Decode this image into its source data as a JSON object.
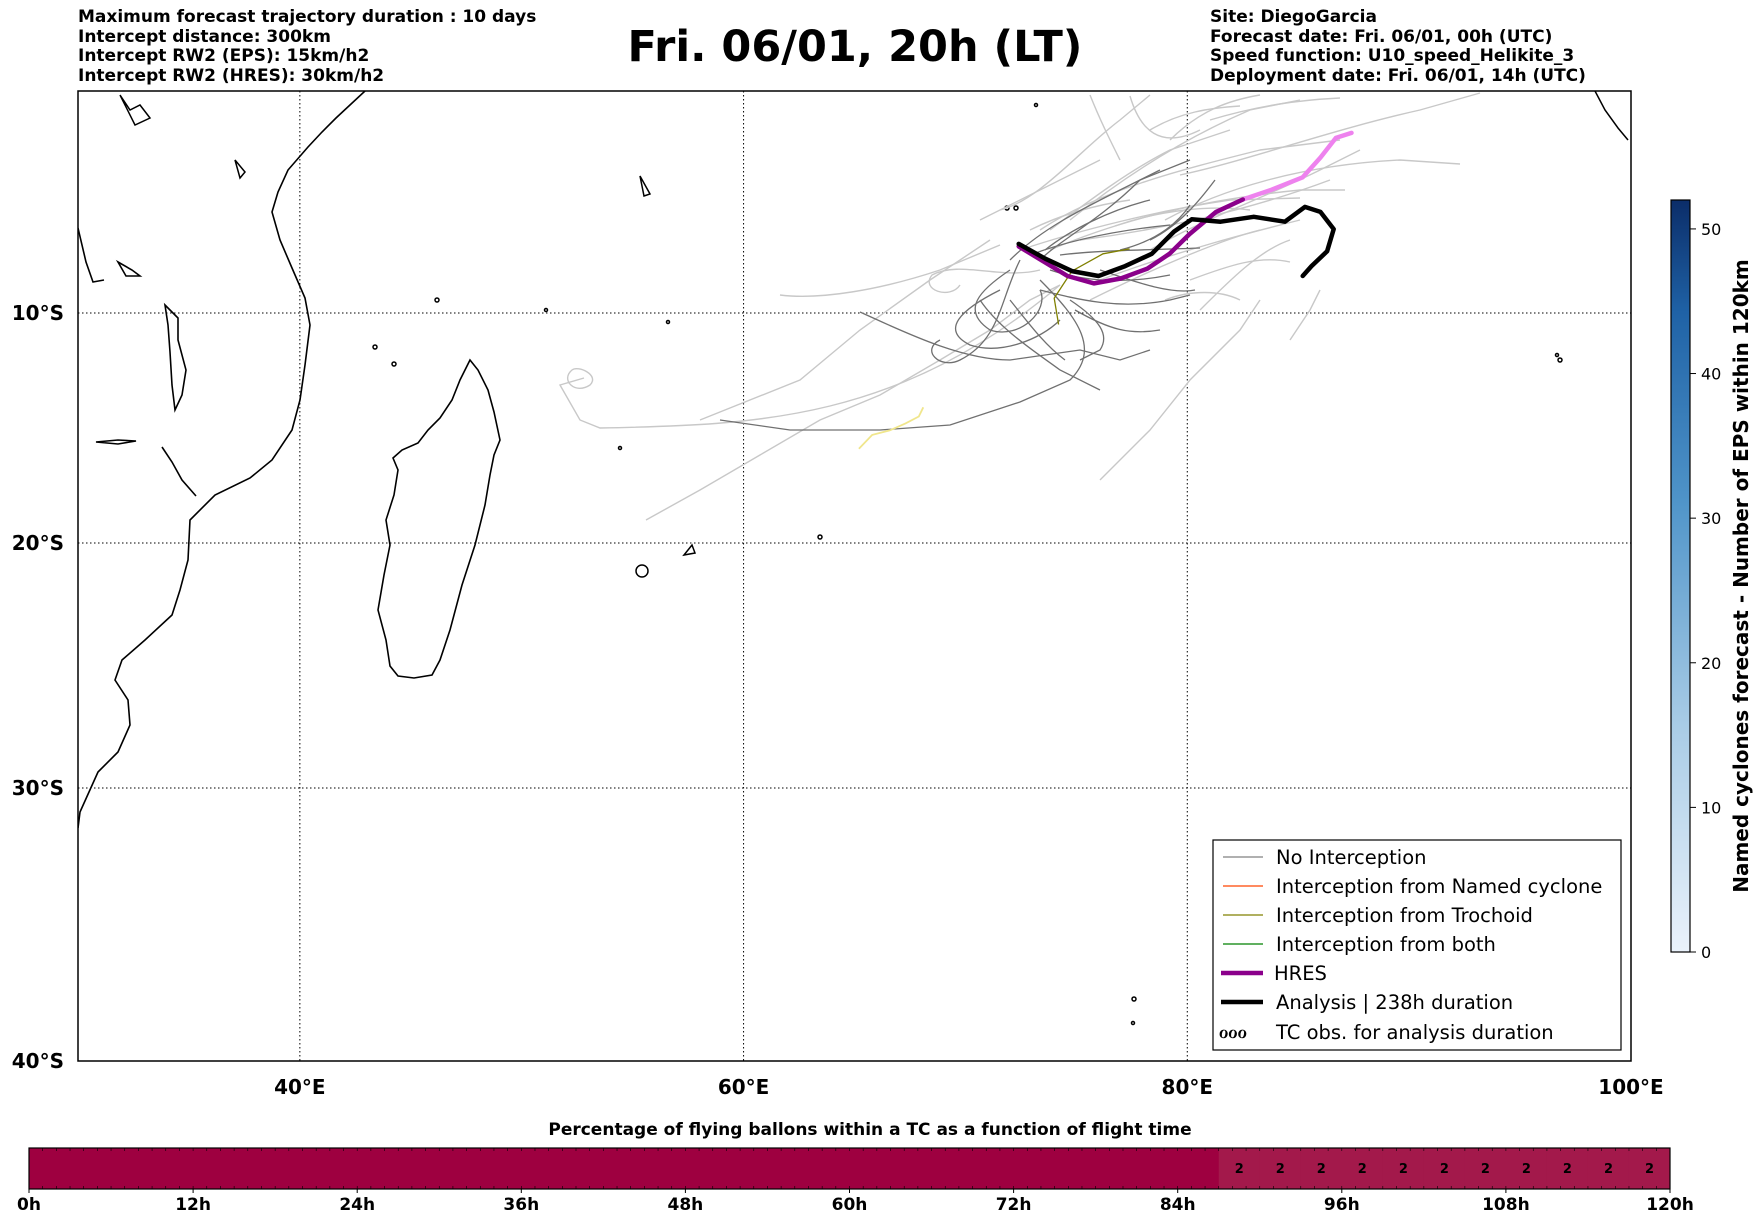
{
  "header_left": [
    "Maximum forecast trajectory duration : 10 days",
    "Intercept distance: 300km",
    "Intercept RW2 (EPS):  15km/h2",
    "Intercept RW2 (HRES): 30km/h2"
  ],
  "header_right": [
    "Site: DiegoGarcia",
    "Forecast date: Fri. 06/01, 00h (UTC)",
    "Speed function: U10_speed_Helikite_3",
    "Deployment date: Fri. 06/01, 14h (UTC)"
  ],
  "title": "Fri. 06/01, 20h (LT)",
  "map": {
    "lon_range": [
      30,
      100
    ],
    "lat_range": [
      -40,
      -1
    ],
    "lon_ticks": [
      {
        "value": 40,
        "label": "40°E"
      },
      {
        "value": 60,
        "label": "60°E"
      },
      {
        "value": 80,
        "label": "80°E"
      },
      {
        "value": 100,
        "label": "100°E"
      }
    ],
    "lat_ticks": [
      {
        "value": -10,
        "label": "10°S"
      },
      {
        "value": -20,
        "label": "20°S"
      },
      {
        "value": -30,
        "label": "30°S"
      },
      {
        "value": -40,
        "label": "40°S"
      }
    ],
    "grid": "dotted",
    "trajectories": {
      "hres": {
        "color": "#8B008B",
        "tail_color": "#EE82EE",
        "lonlat": [
          [
            72.4,
            -7.3
          ],
          [
            73.5,
            -7.9
          ],
          [
            74.6,
            -8.5
          ],
          [
            75.8,
            -8.8
          ],
          [
            77.0,
            -8.6
          ],
          [
            78.2,
            -8.2
          ],
          [
            79.2,
            -7.6
          ],
          [
            80.1,
            -6.8
          ],
          [
            81.3,
            -5.9
          ],
          [
            82.5,
            -5.4
          ],
          [
            83.8,
            -5.0
          ],
          [
            85.2,
            -4.5
          ],
          [
            86.0,
            -3.7
          ],
          [
            86.7,
            -2.9
          ],
          [
            87.4,
            -2.7
          ]
        ]
      },
      "analysis": {
        "color": "#000000",
        "duration_label": "238h duration",
        "lonlat": [
          [
            72.4,
            -7.2
          ],
          [
            73.6,
            -7.8
          ],
          [
            74.8,
            -8.3
          ],
          [
            76.0,
            -8.5
          ],
          [
            77.2,
            -8.1
          ],
          [
            78.4,
            -7.6
          ],
          [
            79.4,
            -6.7
          ],
          [
            80.2,
            -6.2
          ],
          [
            81.5,
            -6.3
          ],
          [
            83.0,
            -6.1
          ],
          [
            84.4,
            -6.3
          ],
          [
            85.3,
            -5.7
          ],
          [
            86.0,
            -5.9
          ],
          [
            86.6,
            -6.6
          ],
          [
            86.3,
            -7.5
          ],
          [
            85.6,
            -8.1
          ],
          [
            85.2,
            -8.5
          ]
        ]
      },
      "trochoid": {
        "color": "#808000",
        "lonlat": [
          [
            74.2,
            -10.5
          ],
          [
            74.0,
            -9.4
          ],
          [
            74.8,
            -8.3
          ],
          [
            76.2,
            -7.6
          ],
          [
            77.4,
            -7.4
          ]
        ]
      },
      "yellow": {
        "color": "#F0E68C",
        "lonlat": [
          [
            65.2,
            -15.9
          ],
          [
            65.8,
            -15.3
          ],
          [
            66.6,
            -15.1
          ],
          [
            67.3,
            -14.8
          ],
          [
            67.9,
            -14.5
          ],
          [
            68.1,
            -14.1
          ]
        ]
      }
    }
  },
  "legend": [
    {
      "label": "No Interception",
      "color": "#808080",
      "style": "thin"
    },
    {
      "label": "Interception from Named cyclone",
      "color": "#FF4500",
      "style": "thin"
    },
    {
      "label": "Interception from Trochoid",
      "color": "#808000",
      "style": "thin"
    },
    {
      "label": "Interception from both",
      "color": "#008000",
      "style": "thin"
    },
    {
      "label": "HRES",
      "color": "#8B008B",
      "style": "thick"
    },
    {
      "label": "Analysis | 238h duration",
      "color": "#000000",
      "style": "thick"
    },
    {
      "label": "TC obs. for analysis duration",
      "color": "#000000",
      "style": "symbol"
    }
  ],
  "colorbar": {
    "label": "Named cyclones forecast - Number of EPS within 120km",
    "min": 0,
    "max": 52,
    "ticks": [
      "0",
      "10",
      "20",
      "30",
      "40",
      "50"
    ],
    "color_low": "#EAF2FB",
    "color_high": "#0B2D69"
  },
  "flight_pct": {
    "title": "Percentage of flying ballons within a TC as a function of flight time",
    "hours_max": 120,
    "ticks": [
      "0h",
      "12h",
      "24h",
      "36h",
      "48h",
      "60h",
      "72h",
      "84h",
      "96h",
      "108h",
      "120h"
    ],
    "labelled_from_hour": 87,
    "labelled_values": [
      "2",
      "2",
      "2",
      "2",
      "2",
      "2",
      "2",
      "2",
      "2",
      "2",
      "2"
    ],
    "color_zero": "#9E0040",
    "color_labelled": "#A3194B"
  },
  "chart_data": {
    "type": "heatmap",
    "title": "Percentage of flying ballons within a TC as a function of flight time",
    "x": [
      "87h",
      "90h",
      "93h",
      "96h",
      "99h",
      "102h",
      "105h",
      "108h",
      "111h",
      "114h",
      "117h"
    ],
    "values": [
      2,
      2,
      2,
      2,
      2,
      2,
      2,
      2,
      2,
      2,
      2
    ],
    "xlim": [
      0,
      120
    ]
  }
}
